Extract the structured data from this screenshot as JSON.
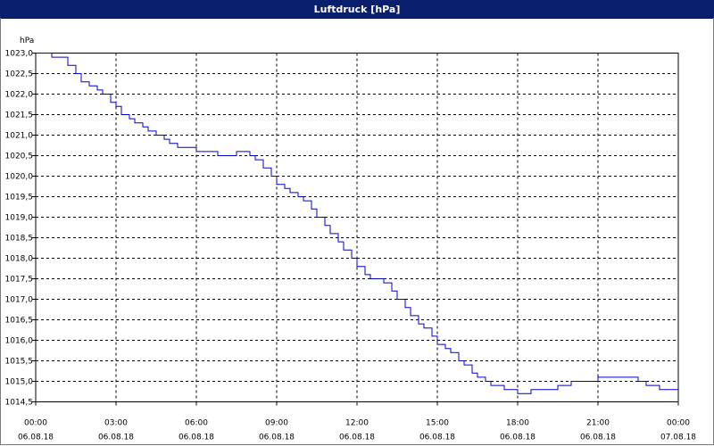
{
  "window": {
    "title": "Luftdruck [hPa]"
  },
  "chart_data": {
    "type": "line",
    "title": "Luftdruck [hPa]",
    "ylabel": "hPa",
    "xlabel": "",
    "ylim": [
      1014.5,
      1023.0
    ],
    "yticks": [
      "1023,0",
      "1022,5",
      "1022,0",
      "1021,5",
      "1021,0",
      "1020,5",
      "1020,0",
      "1019,5",
      "1019,0",
      "1018,5",
      "1018,0",
      "1017,5",
      "1017,0",
      "1016,5",
      "1016,0",
      "1015,5",
      "1015,0",
      "1014,5"
    ],
    "xticks": [
      {
        "time": "00:00",
        "date": "06.08.18"
      },
      {
        "time": "03:00",
        "date": "06.08.18"
      },
      {
        "time": "06:00",
        "date": "06.08.18"
      },
      {
        "time": "09:00",
        "date": "06.08.18"
      },
      {
        "time": "12:00",
        "date": "06.08.18"
      },
      {
        "time": "15:00",
        "date": "06.08.18"
      },
      {
        "time": "18:00",
        "date": "06.08.18"
      },
      {
        "time": "21:00",
        "date": "06.08.18"
      },
      {
        "time": "00:00",
        "date": "07.08.18"
      }
    ],
    "grid": true,
    "series": [
      {
        "color": "#0000cc",
        "x_hours": [
          0,
          0.4,
          0.6,
          1.0,
          1.2,
          1.5,
          1.7,
          2.0,
          2.3,
          2.5,
          2.8,
          3.0,
          3.2,
          3.5,
          3.7,
          4.0,
          4.2,
          4.5,
          4.8,
          5.0,
          5.3,
          5.5,
          6.0,
          6.2,
          6.5,
          6.8,
          7.0,
          7.2,
          7.5,
          7.7,
          8.0,
          8.2,
          8.5,
          8.8,
          9.0,
          9.3,
          9.5,
          9.8,
          10.0,
          10.3,
          10.5,
          10.8,
          11.0,
          11.3,
          11.5,
          11.8,
          12.0,
          12.3,
          12.5,
          12.8,
          13.0,
          13.3,
          13.5,
          13.8,
          14.0,
          14.3,
          14.5,
          14.8,
          15.0,
          15.3,
          15.5,
          15.8,
          16.0,
          16.3,
          16.5,
          16.8,
          17.0,
          17.3,
          17.5,
          17.8,
          18.0,
          18.3,
          18.5,
          18.8,
          19.0,
          19.5,
          19.8,
          20.0,
          20.3,
          20.5,
          20.8,
          21.0,
          21.2,
          21.5,
          21.8,
          22.0,
          22.3,
          22.5,
          22.8,
          23.0,
          23.3,
          23.5,
          23.8,
          24.0
        ],
        "values": [
          1023.0,
          1023.0,
          1022.9,
          1022.9,
          1022.7,
          1022.5,
          1022.3,
          1022.2,
          1022.1,
          1022.0,
          1021.8,
          1021.7,
          1021.5,
          1021.4,
          1021.3,
          1021.2,
          1021.1,
          1021.0,
          1020.9,
          1020.8,
          1020.7,
          1020.7,
          1020.6,
          1020.6,
          1020.6,
          1020.5,
          1020.5,
          1020.5,
          1020.6,
          1020.6,
          1020.5,
          1020.4,
          1020.2,
          1020.0,
          1019.8,
          1019.7,
          1019.6,
          1019.5,
          1019.4,
          1019.2,
          1019.0,
          1018.8,
          1018.6,
          1018.4,
          1018.2,
          1018.0,
          1017.8,
          1017.6,
          1017.5,
          1017.5,
          1017.4,
          1017.2,
          1017.0,
          1016.8,
          1016.6,
          1016.4,
          1016.3,
          1016.1,
          1015.9,
          1015.8,
          1015.7,
          1015.5,
          1015.4,
          1015.2,
          1015.1,
          1015.0,
          1014.9,
          1014.9,
          1014.8,
          1014.8,
          1014.7,
          1014.7,
          1014.8,
          1014.8,
          1014.8,
          1014.9,
          1014.9,
          1015.0,
          1015.0,
          1015.0,
          1015.0,
          1015.1,
          1015.1,
          1015.1,
          1015.1,
          1015.1,
          1015.1,
          1015.0,
          1014.9,
          1014.9,
          1014.8,
          1014.8,
          1014.8,
          1014.8
        ]
      }
    ]
  }
}
